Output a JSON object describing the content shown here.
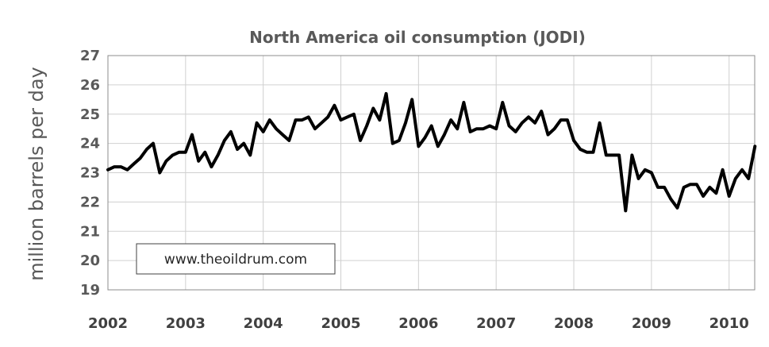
{
  "chart_data": {
    "type": "line",
    "title": "North America oil consumption (JODI)",
    "xlabel": "",
    "ylabel": "million barrels per day",
    "ylim": [
      19,
      27
    ],
    "xlim": [
      2002,
      2010.33
    ],
    "yticks": [
      "19",
      "20",
      "21",
      "22",
      "23",
      "24",
      "25",
      "26",
      "27"
    ],
    "xticks": [
      "2002",
      "2003",
      "2004",
      "2005",
      "2006",
      "2007",
      "2008",
      "2009",
      "2010"
    ],
    "grid": true,
    "annotation": "www.theoildrum.com",
    "series_color": "#000000",
    "x": [
      2002.0,
      2002.083,
      2002.167,
      2002.25,
      2002.333,
      2002.417,
      2002.5,
      2002.583,
      2002.667,
      2002.75,
      2002.833,
      2002.917,
      2003.0,
      2003.083,
      2003.167,
      2003.25,
      2003.333,
      2003.417,
      2003.5,
      2003.583,
      2003.667,
      2003.75,
      2003.833,
      2003.917,
      2004.0,
      2004.083,
      2004.167,
      2004.25,
      2004.333,
      2004.417,
      2004.5,
      2004.583,
      2004.667,
      2004.75,
      2004.833,
      2004.917,
      2005.0,
      2005.083,
      2005.167,
      2005.25,
      2005.333,
      2005.417,
      2005.5,
      2005.583,
      2005.667,
      2005.75,
      2005.833,
      2005.917,
      2006.0,
      2006.083,
      2006.167,
      2006.25,
      2006.333,
      2006.417,
      2006.5,
      2006.583,
      2006.667,
      2006.75,
      2006.833,
      2006.917,
      2007.0,
      2007.083,
      2007.167,
      2007.25,
      2007.333,
      2007.417,
      2007.5,
      2007.583,
      2007.667,
      2007.75,
      2007.833,
      2007.917,
      2008.0,
      2008.083,
      2008.167,
      2008.25,
      2008.333,
      2008.417,
      2008.5,
      2008.583,
      2008.667,
      2008.75,
      2008.833,
      2008.917,
      2009.0,
      2009.083,
      2009.167,
      2009.25,
      2009.333,
      2009.417,
      2009.5,
      2009.583,
      2009.667,
      2009.75,
      2009.833,
      2009.917,
      2010.0,
      2010.083,
      2010.167,
      2010.25,
      2010.333
    ],
    "series": [
      {
        "values": [
          23.1,
          23.2,
          23.2,
          23.1,
          23.3,
          23.5,
          23.8,
          24.0,
          23.0,
          23.4,
          23.6,
          23.7,
          23.7,
          24.3,
          23.4,
          23.7,
          23.2,
          23.6,
          24.1,
          24.4,
          23.8,
          24.0,
          23.6,
          24.7,
          24.4,
          24.8,
          24.5,
          24.3,
          24.1,
          24.8,
          24.8,
          24.9,
          24.5,
          24.7,
          24.9,
          25.3,
          24.8,
          24.9,
          25.0,
          24.1,
          24.6,
          25.2,
          24.8,
          25.7,
          24.0,
          24.1,
          24.7,
          25.5,
          23.9,
          24.2,
          24.6,
          23.9,
          24.3,
          24.8,
          24.5,
          25.4,
          24.4,
          24.5,
          24.5,
          24.6,
          24.5,
          25.4,
          24.6,
          24.4,
          24.7,
          24.9,
          24.7,
          25.1,
          24.3,
          24.5,
          24.8,
          24.8,
          24.1,
          23.8,
          23.7,
          23.7,
          24.7,
          23.6,
          23.6,
          23.6,
          21.7,
          23.6,
          22.8,
          23.1,
          23.0,
          22.5,
          22.5,
          22.1,
          21.8,
          22.5,
          22.6,
          22.6,
          22.2,
          22.5,
          22.3,
          23.1,
          22.2,
          22.8,
          23.1,
          22.8,
          23.9
        ]
      }
    ]
  }
}
